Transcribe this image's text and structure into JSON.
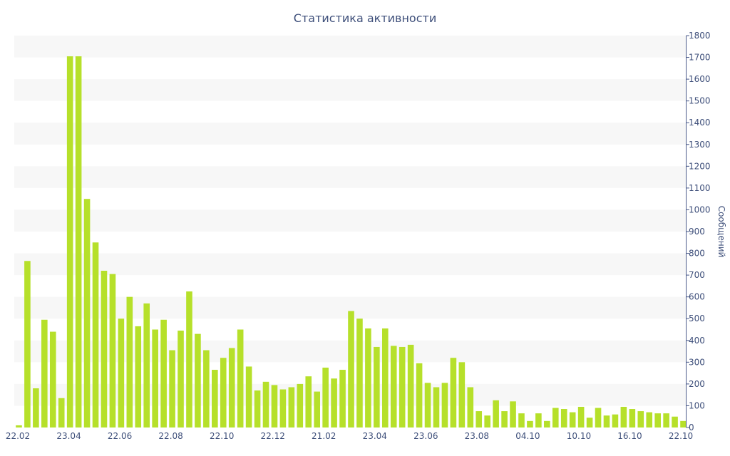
{
  "chart_data": {
    "type": "bar",
    "title": "Статистика активности",
    "xlabel": "",
    "ylabel": "Сообщений",
    "ylim": [
      0,
      1800
    ],
    "yticks": [
      0,
      100,
      200,
      300,
      400,
      500,
      600,
      700,
      800,
      900,
      1000,
      1100,
      1200,
      1300,
      1400,
      1500,
      1600,
      1700,
      1800
    ],
    "y_axis_position": "right",
    "grid": "alternating-bands",
    "legend": "none",
    "bar_color": "#b6e02a",
    "x_tick_labels": [
      "22.02",
      "23.04",
      "22.06",
      "22.08",
      "22.10",
      "22.12",
      "21.02",
      "23.04",
      "23.06",
      "23.08",
      "04.10",
      "10.10",
      "16.10",
      "22.10"
    ],
    "values": [
      10,
      765,
      180,
      495,
      440,
      135,
      1705,
      1705,
      1050,
      850,
      720,
      705,
      500,
      600,
      465,
      570,
      450,
      495,
      355,
      445,
      625,
      430,
      355,
      265,
      320,
      365,
      450,
      280,
      170,
      210,
      195,
      175,
      185,
      200,
      235,
      165,
      275,
      225,
      265,
      535,
      500,
      455,
      370,
      455,
      375,
      370,
      380,
      295,
      205,
      185,
      205,
      320,
      300,
      185,
      75,
      55,
      125,
      75,
      120,
      65,
      30,
      65,
      30,
      90,
      85,
      70,
      95,
      45,
      90,
      55,
      60,
      95,
      85,
      75,
      70,
      65,
      65,
      50,
      30
    ]
  }
}
